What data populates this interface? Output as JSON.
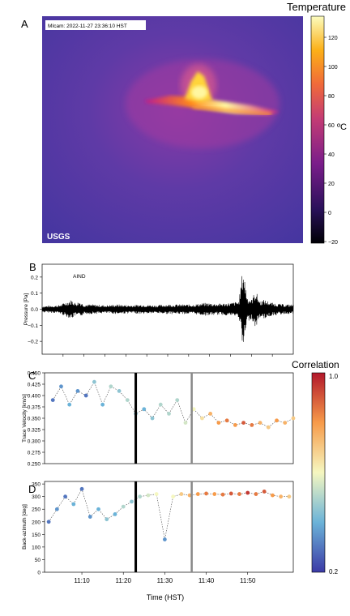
{
  "colors": {
    "thermal_background": "#5a3aa3",
    "lava_hot": "#fff7a0",
    "lava_mid": "#ff8a1a",
    "lava_cool": "#c2188a",
    "series_black": "#000000",
    "dot_line": "#444444",
    "marker_black": "#000000",
    "marker_gray": "#888888"
  },
  "panel_a": {
    "label": "A",
    "timestamp": "MIcam: 2022-11-27 23:36:10 HST",
    "logo": "USGS",
    "colorbar_title": "Temperature",
    "colorbar_unit": "ºC",
    "colorbar_ticks": [
      "120",
      "100",
      "80",
      "60",
      "40",
      "20",
      "0",
      "−20"
    ]
  },
  "chart_data": [
    {
      "id": "panel-b",
      "type": "line",
      "panel_label": "B",
      "annotation": "AIND",
      "ylabel": "Pressure [Pa]",
      "xlabel": "",
      "ylim": [
        -0.28,
        0.28
      ],
      "yticks": [
        "0.2",
        "0.1",
        "0.0",
        "−0.1",
        "−0.2"
      ],
      "x_range_minutes": [
        0,
        60
      ],
      "series": [
        {
          "x": [
            0,
            4,
            7,
            8,
            9,
            10,
            12,
            15,
            18,
            21,
            24,
            27,
            30,
            33,
            36,
            39,
            42,
            45,
            47,
            48,
            49,
            50,
            51,
            52,
            53,
            55,
            58,
            60
          ],
          "envelope": [
            0.02,
            0.025,
            0.06,
            0.04,
            0.05,
            0.03,
            0.03,
            0.025,
            0.03,
            0.025,
            0.03,
            0.025,
            0.03,
            0.03,
            0.03,
            0.04,
            0.035,
            0.04,
            0.05,
            0.27,
            0.08,
            0.06,
            0.12,
            0.05,
            0.06,
            0.04,
            0.03,
            0.03
          ]
        }
      ]
    },
    {
      "id": "panel-c",
      "type": "scatter",
      "panel_label": "C",
      "ylabel": "Trace Velocity [km/s]",
      "ylim": [
        0.25,
        0.45
      ],
      "yticks": [
        "0.450",
        "0.425",
        "0.400",
        "0.375",
        "0.350",
        "0.325",
        "0.300",
        "0.275",
        "0.250"
      ],
      "legend_title": "Correlation",
      "colorbar_ticks": [
        "1.0",
        "0.2"
      ],
      "vertical_lines_minutes": [
        {
          "x": 22,
          "color": "black"
        },
        {
          "x": 35.5,
          "color": "gray"
        }
      ],
      "series": [
        {
          "x": [
            2,
            4,
            6,
            8,
            10,
            12,
            14,
            16,
            18,
            20,
            22,
            24,
            26,
            28,
            30,
            32,
            34,
            36,
            38,
            40,
            42,
            44,
            46,
            48,
            50,
            52,
            54,
            56,
            58,
            60
          ],
          "y": [
            0.39,
            0.42,
            0.38,
            0.41,
            0.4,
            0.43,
            0.38,
            0.42,
            0.41,
            0.39,
            0.36,
            0.37,
            0.35,
            0.38,
            0.36,
            0.39,
            0.34,
            0.37,
            0.35,
            0.36,
            0.34,
            0.345,
            0.335,
            0.34,
            0.335,
            0.34,
            0.33,
            0.345,
            0.34,
            0.35
          ],
          "correlation": [
            0.3,
            0.35,
            0.4,
            0.35,
            0.3,
            0.45,
            0.4,
            0.5,
            0.45,
            0.5,
            0.45,
            0.4,
            0.45,
            0.5,
            0.5,
            0.5,
            0.55,
            0.6,
            0.65,
            0.75,
            0.8,
            0.85,
            0.8,
            0.9,
            0.85,
            0.75,
            0.7,
            0.8,
            0.75,
            0.7
          ]
        }
      ]
    },
    {
      "id": "panel-d",
      "type": "scatter",
      "panel_label": "D",
      "ylabel": "Back-azimuth [deg]",
      "xlabel": "Time (HST)",
      "ylim": [
        0,
        360
      ],
      "yticks": [
        "350",
        "300",
        "250",
        "200",
        "150",
        "100",
        "50",
        "0"
      ],
      "xticks": [
        "11:10",
        "11:20",
        "11:30",
        "11:40",
        "11:50"
      ],
      "xtick_minutes": [
        9,
        19,
        29,
        39,
        49
      ],
      "x_range_minutes": [
        0,
        60
      ],
      "vertical_lines_minutes": [
        {
          "x": 22,
          "color": "black"
        },
        {
          "x": 35.5,
          "color": "gray"
        }
      ],
      "series": [
        {
          "x": [
            1,
            3,
            5,
            7,
            9,
            11,
            13,
            15,
            17,
            19,
            21,
            23,
            25,
            27,
            29,
            31,
            33,
            35,
            37,
            39,
            41,
            43,
            45,
            47,
            49,
            51,
            53,
            55,
            57,
            59
          ],
          "y": [
            200,
            250,
            300,
            270,
            330,
            220,
            250,
            210,
            230,
            260,
            280,
            300,
            305,
            310,
            130,
            300,
            310,
            305,
            310,
            312,
            310,
            308,
            312,
            310,
            315,
            310,
            320,
            305,
            300,
            300
          ],
          "correlation": [
            0.3,
            0.35,
            0.3,
            0.4,
            0.3,
            0.35,
            0.4,
            0.45,
            0.4,
            0.5,
            0.45,
            0.5,
            0.55,
            0.6,
            0.35,
            0.6,
            0.7,
            0.75,
            0.8,
            0.85,
            0.8,
            0.85,
            0.9,
            0.85,
            0.95,
            0.85,
            0.9,
            0.8,
            0.75,
            0.7
          ]
        }
      ]
    }
  ]
}
